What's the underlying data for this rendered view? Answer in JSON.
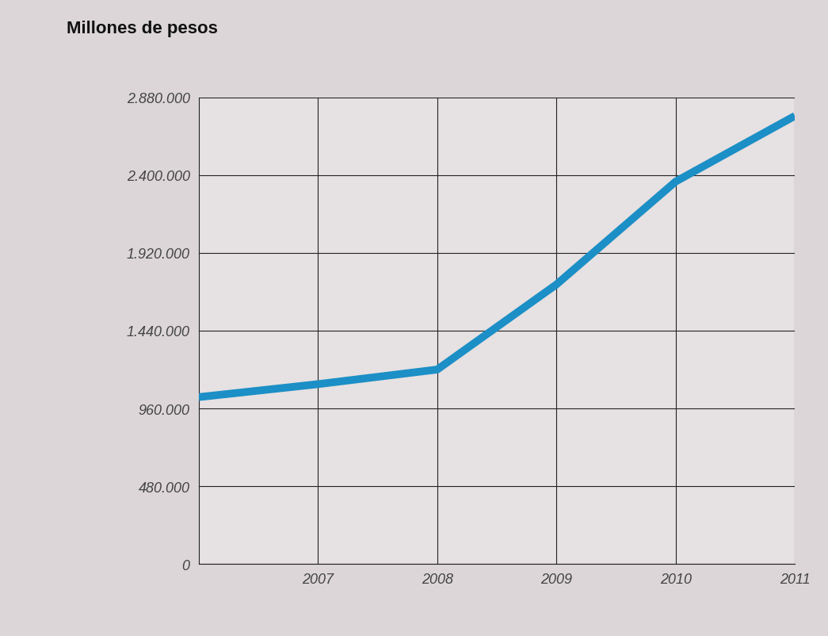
{
  "chart_data": {
    "type": "line",
    "title": "Millones de pesos",
    "categories": [
      null,
      "2007",
      "2008",
      "2009",
      "2010",
      "2011"
    ],
    "values": [
      1030000,
      1110000,
      1200000,
      1725000,
      2360000,
      2765000
    ],
    "color": "#1b8fc6",
    "xlim": [
      0,
      5
    ],
    "ylim": [
      0,
      2880000
    ],
    "yticks": [
      0,
      {
        "value": 480000,
        "label": "480.000"
      },
      {
        "value": 960000,
        "label": "960.000"
      },
      {
        "value": 1440000,
        "label": "1.440.000"
      },
      {
        "value": 1920000,
        "label": "1.920.000"
      },
      {
        "value": 2400000,
        "label": "2.400.000"
      },
      {
        "value": 2880000,
        "label": "2.880.000"
      }
    ],
    "grid": true
  }
}
